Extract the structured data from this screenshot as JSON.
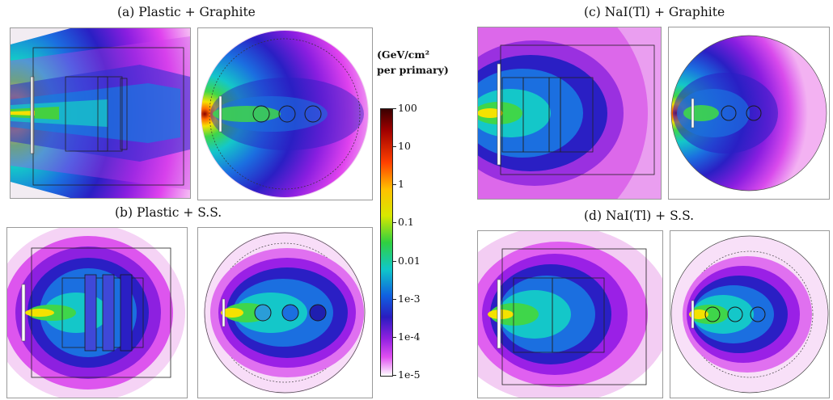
{
  "panels": [
    {
      "id": "a",
      "title": "(a) Plastic + Graphite"
    },
    {
      "id": "b",
      "title": "(b) Plastic + S.S."
    },
    {
      "id": "c",
      "title": "(c) NaI(Tl) + Graphite"
    },
    {
      "id": "d",
      "title": "(d) NaI(Tl) + S.S."
    }
  ],
  "colorbar": {
    "unit_line1": "(GeV/cm²",
    "unit_line2": "per primary)",
    "ticks": [
      "100",
      "10",
      "1",
      "0.1",
      "0.01",
      "1e-3",
      "1e-4",
      "1e-5"
    ]
  }
}
